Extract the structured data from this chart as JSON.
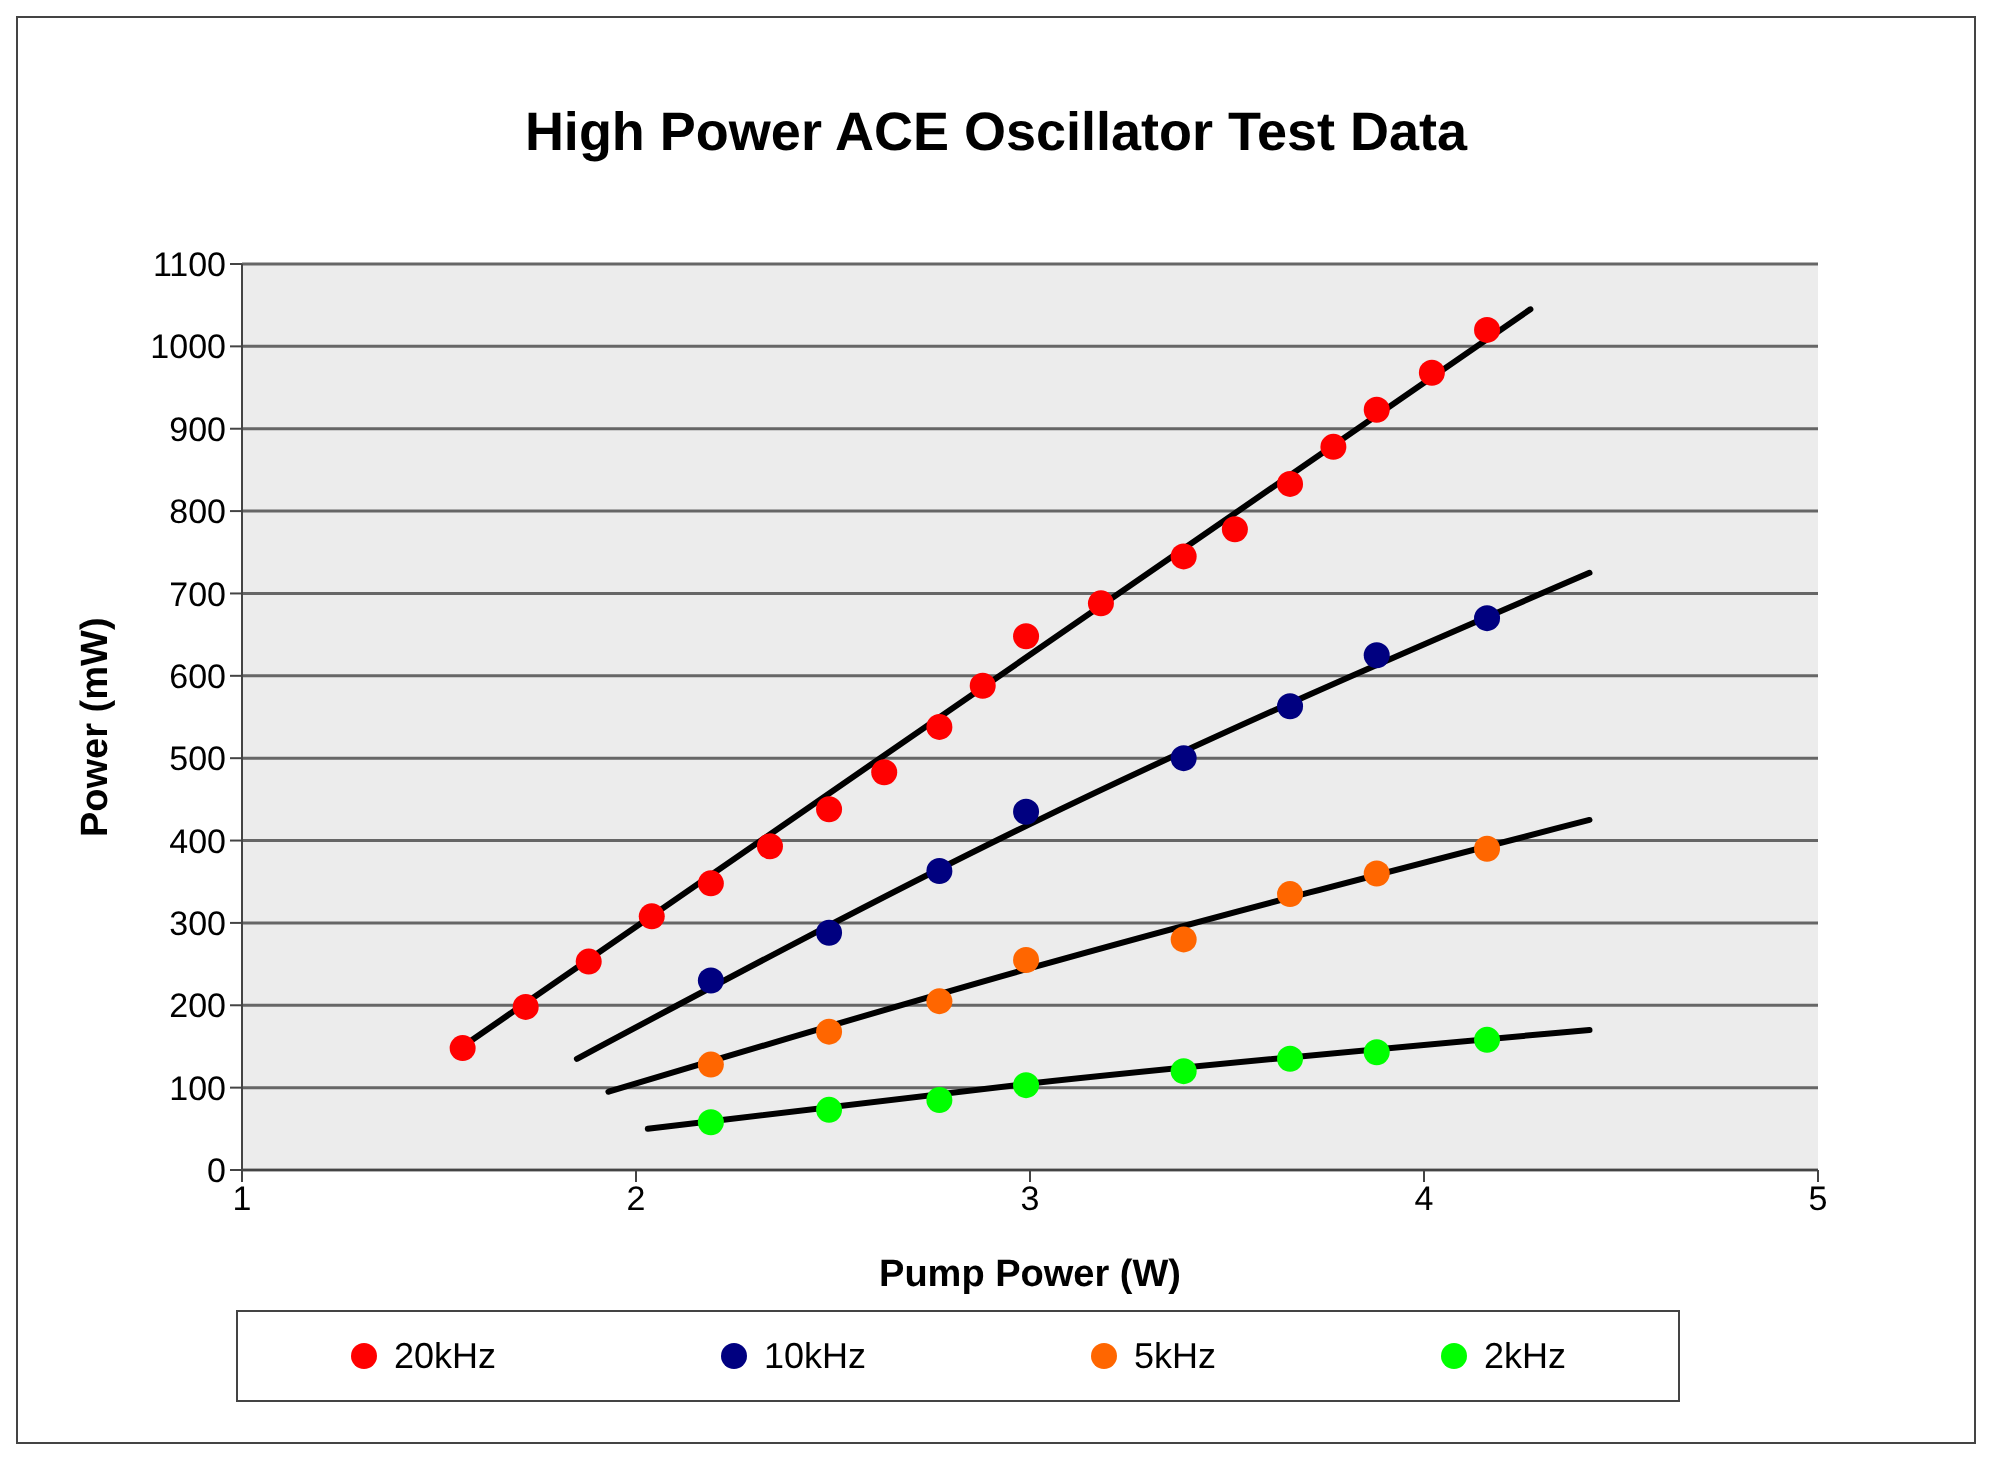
{
  "chart_data": {
    "type": "scatter",
    "title": "High Power ACE Oscillator Test Data",
    "xlabel": "Pump Power (W)",
    "ylabel": "Power (mW)",
    "xlim": [
      1,
      5
    ],
    "xticks": [
      1,
      2,
      3,
      4,
      5
    ],
    "ylim": [
      0,
      1100
    ],
    "yticks": [
      0,
      100,
      200,
      300,
      400,
      500,
      600,
      700,
      800,
      900,
      1000,
      1100
    ],
    "grid": "y",
    "legend": "bottom",
    "marker": "circle",
    "series": [
      {
        "name": "20kHz",
        "color": "#ff0000",
        "x": [
          1.56,
          1.72,
          1.88,
          2.04,
          2.19,
          2.34,
          2.49,
          2.63,
          2.77,
          2.88,
          2.99,
          3.18,
          3.39,
          3.52,
          3.66,
          3.77,
          3.88,
          4.02,
          4.16
        ],
        "values": [
          148,
          198,
          253,
          308,
          348,
          393,
          438,
          483,
          538,
          588,
          648,
          688,
          745,
          778,
          833,
          878,
          923,
          968,
          1020
        ]
      },
      {
        "name": "10kHz",
        "color": "#000080",
        "x": [
          2.19,
          2.49,
          2.77,
          2.99,
          3.39,
          3.66,
          3.88,
          4.16
        ],
        "values": [
          230,
          288,
          363,
          435,
          500,
          563,
          625,
          670
        ]
      },
      {
        "name": "5kHz",
        "color": "#ff6600",
        "x": [
          2.19,
          2.49,
          2.77,
          2.99,
          3.39,
          3.66,
          3.88,
          4.16
        ],
        "values": [
          128,
          168,
          205,
          255,
          280,
          335,
          360,
          390
        ]
      },
      {
        "name": "2kHz",
        "color": "#00ff00",
        "x": [
          2.19,
          2.49,
          2.77,
          2.99,
          3.39,
          3.66,
          3.88,
          4.16
        ],
        "values": [
          58,
          73,
          85,
          103,
          120,
          135,
          143,
          158
        ]
      },
      {
        "type": "line",
        "color": "#000000",
        "marker": "none",
        "x": [
          1.56,
          4.27
        ],
        "values": [
          150,
          1045
        ]
      },
      {
        "type": "line",
        "color": "#000000",
        "marker": "none",
        "x": [
          1.85,
          3.0,
          4.42
        ],
        "values": [
          135,
          420,
          725
        ]
      },
      {
        "type": "line",
        "color": "#000000",
        "marker": "none",
        "x": [
          1.93,
          3.0,
          4.42
        ],
        "values": [
          95,
          245,
          425
        ]
      },
      {
        "type": "line",
        "color": "#000000",
        "marker": "none",
        "x": [
          2.03,
          3.0,
          4.42
        ],
        "values": [
          50,
          105,
          170
        ]
      }
    ]
  }
}
